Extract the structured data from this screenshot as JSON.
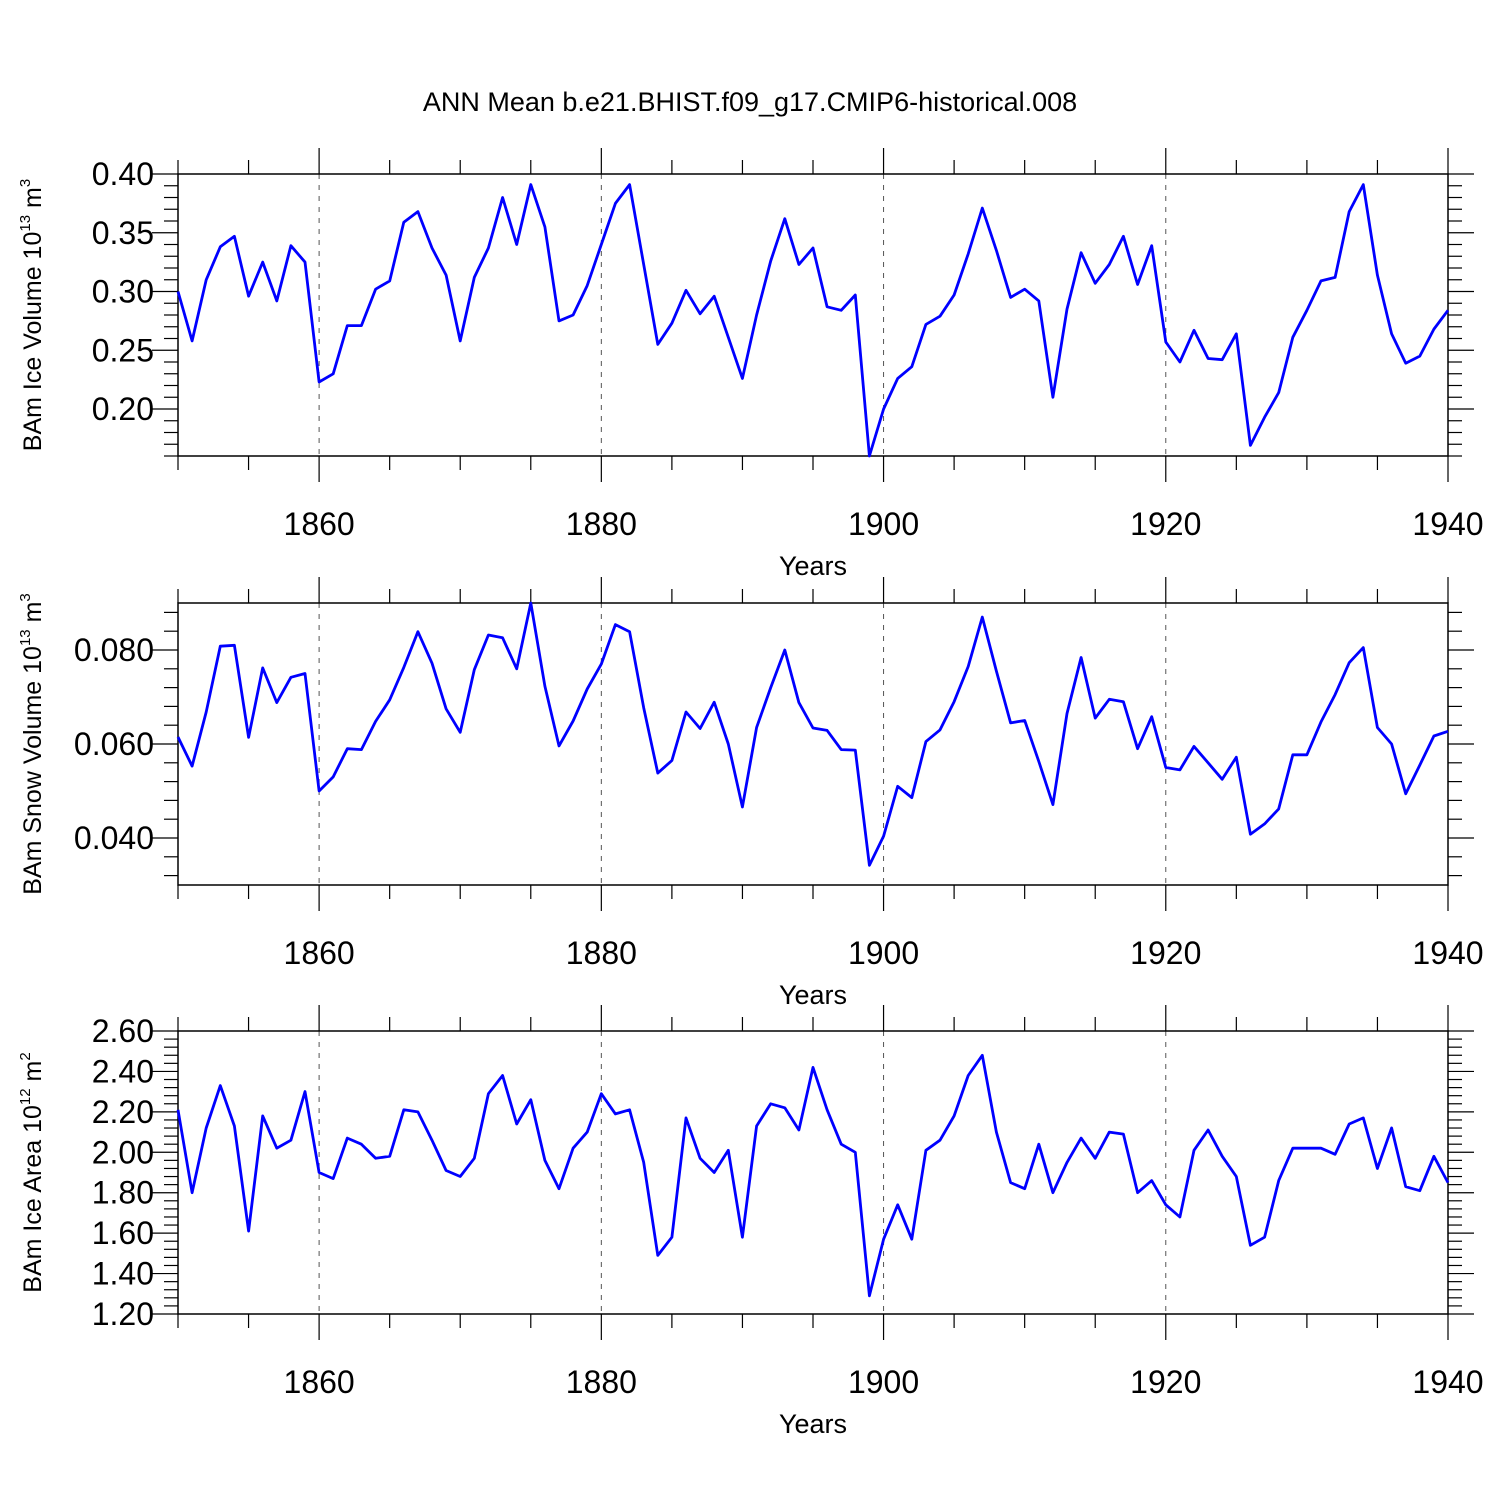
{
  "title": "ANN Mean b.e21.BHIST.f09_g17.CMIP6-historical.008",
  "colors": {
    "line": "#0000ff",
    "axes": "#000000",
    "grid": "#555555"
  },
  "chart_data": [
    {
      "type": "line",
      "ylabel": {
        "text": "BAm Ice Volume 10",
        "exp": "13",
        "unit": "m",
        "unit_exp": "3"
      },
      "xlabel": "Years",
      "xlim": [
        1850,
        1940
      ],
      "ylim": [
        0.16,
        0.4
      ],
      "xticks": [
        "1860",
        "1880",
        "1900",
        "1920",
        "1940"
      ],
      "xtick_values": [
        1860,
        1880,
        1900,
        1920,
        1940
      ],
      "ytick_labels": [
        "0.20",
        "0.25",
        "0.30",
        "0.35",
        "0.40"
      ],
      "ytick_values": [
        0.2,
        0.25,
        0.3,
        0.35,
        0.4
      ],
      "grid": "vertical dashed at major x ticks",
      "x_start": 1850,
      "values": [
        0.3,
        0.258,
        0.31,
        0.338,
        0.347,
        0.296,
        0.325,
        0.292,
        0.339,
        0.325,
        0.223,
        0.23,
        0.271,
        0.271,
        0.302,
        0.309,
        0.359,
        0.368,
        0.337,
        0.314,
        0.258,
        0.312,
        0.337,
        0.38,
        0.34,
        0.391,
        0.355,
        0.275,
        0.28,
        0.305,
        0.34,
        0.375,
        0.391,
        0.323,
        0.255,
        0.273,
        0.301,
        0.281,
        0.296,
        0.261,
        0.226,
        0.28,
        0.326,
        0.362,
        0.323,
        0.337,
        0.287,
        0.284,
        0.297,
        0.16,
        0.2,
        0.226,
        0.236,
        0.272,
        0.279,
        0.297,
        0.332,
        0.371,
        0.335,
        0.295,
        0.302,
        0.292,
        0.21,
        0.285,
        0.333,
        0.307,
        0.323,
        0.347,
        0.306,
        0.339,
        0.257,
        0.24,
        0.267,
        0.243,
        0.242,
        0.264,
        0.169,
        0.193,
        0.214,
        0.261,
        0.284,
        0.309,
        0.312,
        0.368,
        0.391,
        0.314,
        0.264,
        0.239,
        0.245,
        0.268,
        0.284
      ]
    },
    {
      "type": "line",
      "ylabel": {
        "text": "BAm Snow Volume 10",
        "exp": "13",
        "unit": "m",
        "unit_exp": "3"
      },
      "xlabel": "Years",
      "xlim": [
        1850,
        1940
      ],
      "ylim": [
        0.03,
        0.09
      ],
      "xticks": [
        "1860",
        "1880",
        "1900",
        "1920",
        "1940"
      ],
      "xtick_values": [
        1860,
        1880,
        1900,
        1920,
        1940
      ],
      "ytick_labels": [
        "0.040",
        "0.060",
        "0.080"
      ],
      "ytick_values": [
        0.04,
        0.06,
        0.08
      ],
      "grid": "vertical dashed at major x ticks",
      "x_start": 1850,
      "values": [
        0.0615,
        0.0553,
        0.0668,
        0.0808,
        0.081,
        0.0614,
        0.0762,
        0.0688,
        0.0742,
        0.075,
        0.05,
        0.053,
        0.059,
        0.0588,
        0.0648,
        0.0694,
        0.0763,
        0.0839,
        0.0772,
        0.0675,
        0.0625,
        0.0758,
        0.0832,
        0.0826,
        0.076,
        0.09,
        0.0723,
        0.0596,
        0.0649,
        0.0717,
        0.077,
        0.0854,
        0.0839,
        0.0677,
        0.0538,
        0.0565,
        0.0668,
        0.0633,
        0.0689,
        0.06,
        0.0466,
        0.0635,
        0.072,
        0.08,
        0.0688,
        0.0634,
        0.0629,
        0.0588,
        0.0587,
        0.0342,
        0.0404,
        0.051,
        0.0486,
        0.0605,
        0.063,
        0.069,
        0.0765,
        0.087,
        0.0755,
        0.0645,
        0.065,
        0.0563,
        0.0471,
        0.0665,
        0.0784,
        0.0655,
        0.0695,
        0.069,
        0.059,
        0.0658,
        0.055,
        0.0545,
        0.0595,
        0.056,
        0.0525,
        0.0572,
        0.0408,
        0.043,
        0.0462,
        0.0577,
        0.0577,
        0.0647,
        0.0705,
        0.0773,
        0.0805,
        0.0635,
        0.06,
        0.0494,
        0.0555,
        0.0617,
        0.0627
      ]
    },
    {
      "type": "line",
      "ylabel": {
        "text": "BAm Ice Area 10",
        "exp": "12",
        "unit": "m",
        "unit_exp": "2"
      },
      "xlabel": "Years",
      "xlim": [
        1850,
        1940
      ],
      "ylim": [
        1.2,
        2.6
      ],
      "xticks": [
        "1860",
        "1880",
        "1900",
        "1920",
        "1940"
      ],
      "xtick_values": [
        1860,
        1880,
        1900,
        1920,
        1940
      ],
      "ytick_labels": [
        "1.20",
        "1.40",
        "1.60",
        "1.80",
        "2.00",
        "2.20",
        "2.40",
        "2.60"
      ],
      "ytick_values": [
        1.2,
        1.4,
        1.6,
        1.8,
        2.0,
        2.2,
        2.4,
        2.6
      ],
      "grid": "vertical dashed at major x ticks",
      "x_start": 1850,
      "values": [
        2.21,
        1.8,
        2.12,
        2.33,
        2.13,
        1.61,
        2.18,
        2.02,
        2.06,
        2.3,
        1.9,
        1.87,
        2.07,
        2.04,
        1.97,
        1.98,
        2.21,
        2.2,
        2.06,
        1.91,
        1.88,
        1.97,
        2.29,
        2.38,
        2.14,
        2.26,
        1.96,
        1.82,
        2.02,
        2.1,
        2.29,
        2.19,
        2.21,
        1.95,
        1.49,
        1.58,
        2.17,
        1.97,
        1.9,
        2.01,
        1.58,
        2.13,
        2.24,
        2.22,
        2.11,
        2.42,
        2.21,
        2.04,
        2.0,
        1.29,
        1.57,
        1.74,
        1.57,
        2.01,
        2.06,
        2.18,
        2.38,
        2.48,
        2.1,
        1.85,
        1.82,
        2.04,
        1.8,
        1.95,
        2.07,
        1.97,
        2.1,
        2.09,
        1.8,
        1.86,
        1.74,
        1.68,
        2.01,
        2.11,
        1.98,
        1.88,
        1.54,
        1.58,
        1.86,
        2.02,
        2.02,
        2.02,
        1.99,
        2.14,
        2.17,
        1.92,
        2.12,
        1.83,
        1.81,
        1.98,
        1.85
      ]
    }
  ]
}
